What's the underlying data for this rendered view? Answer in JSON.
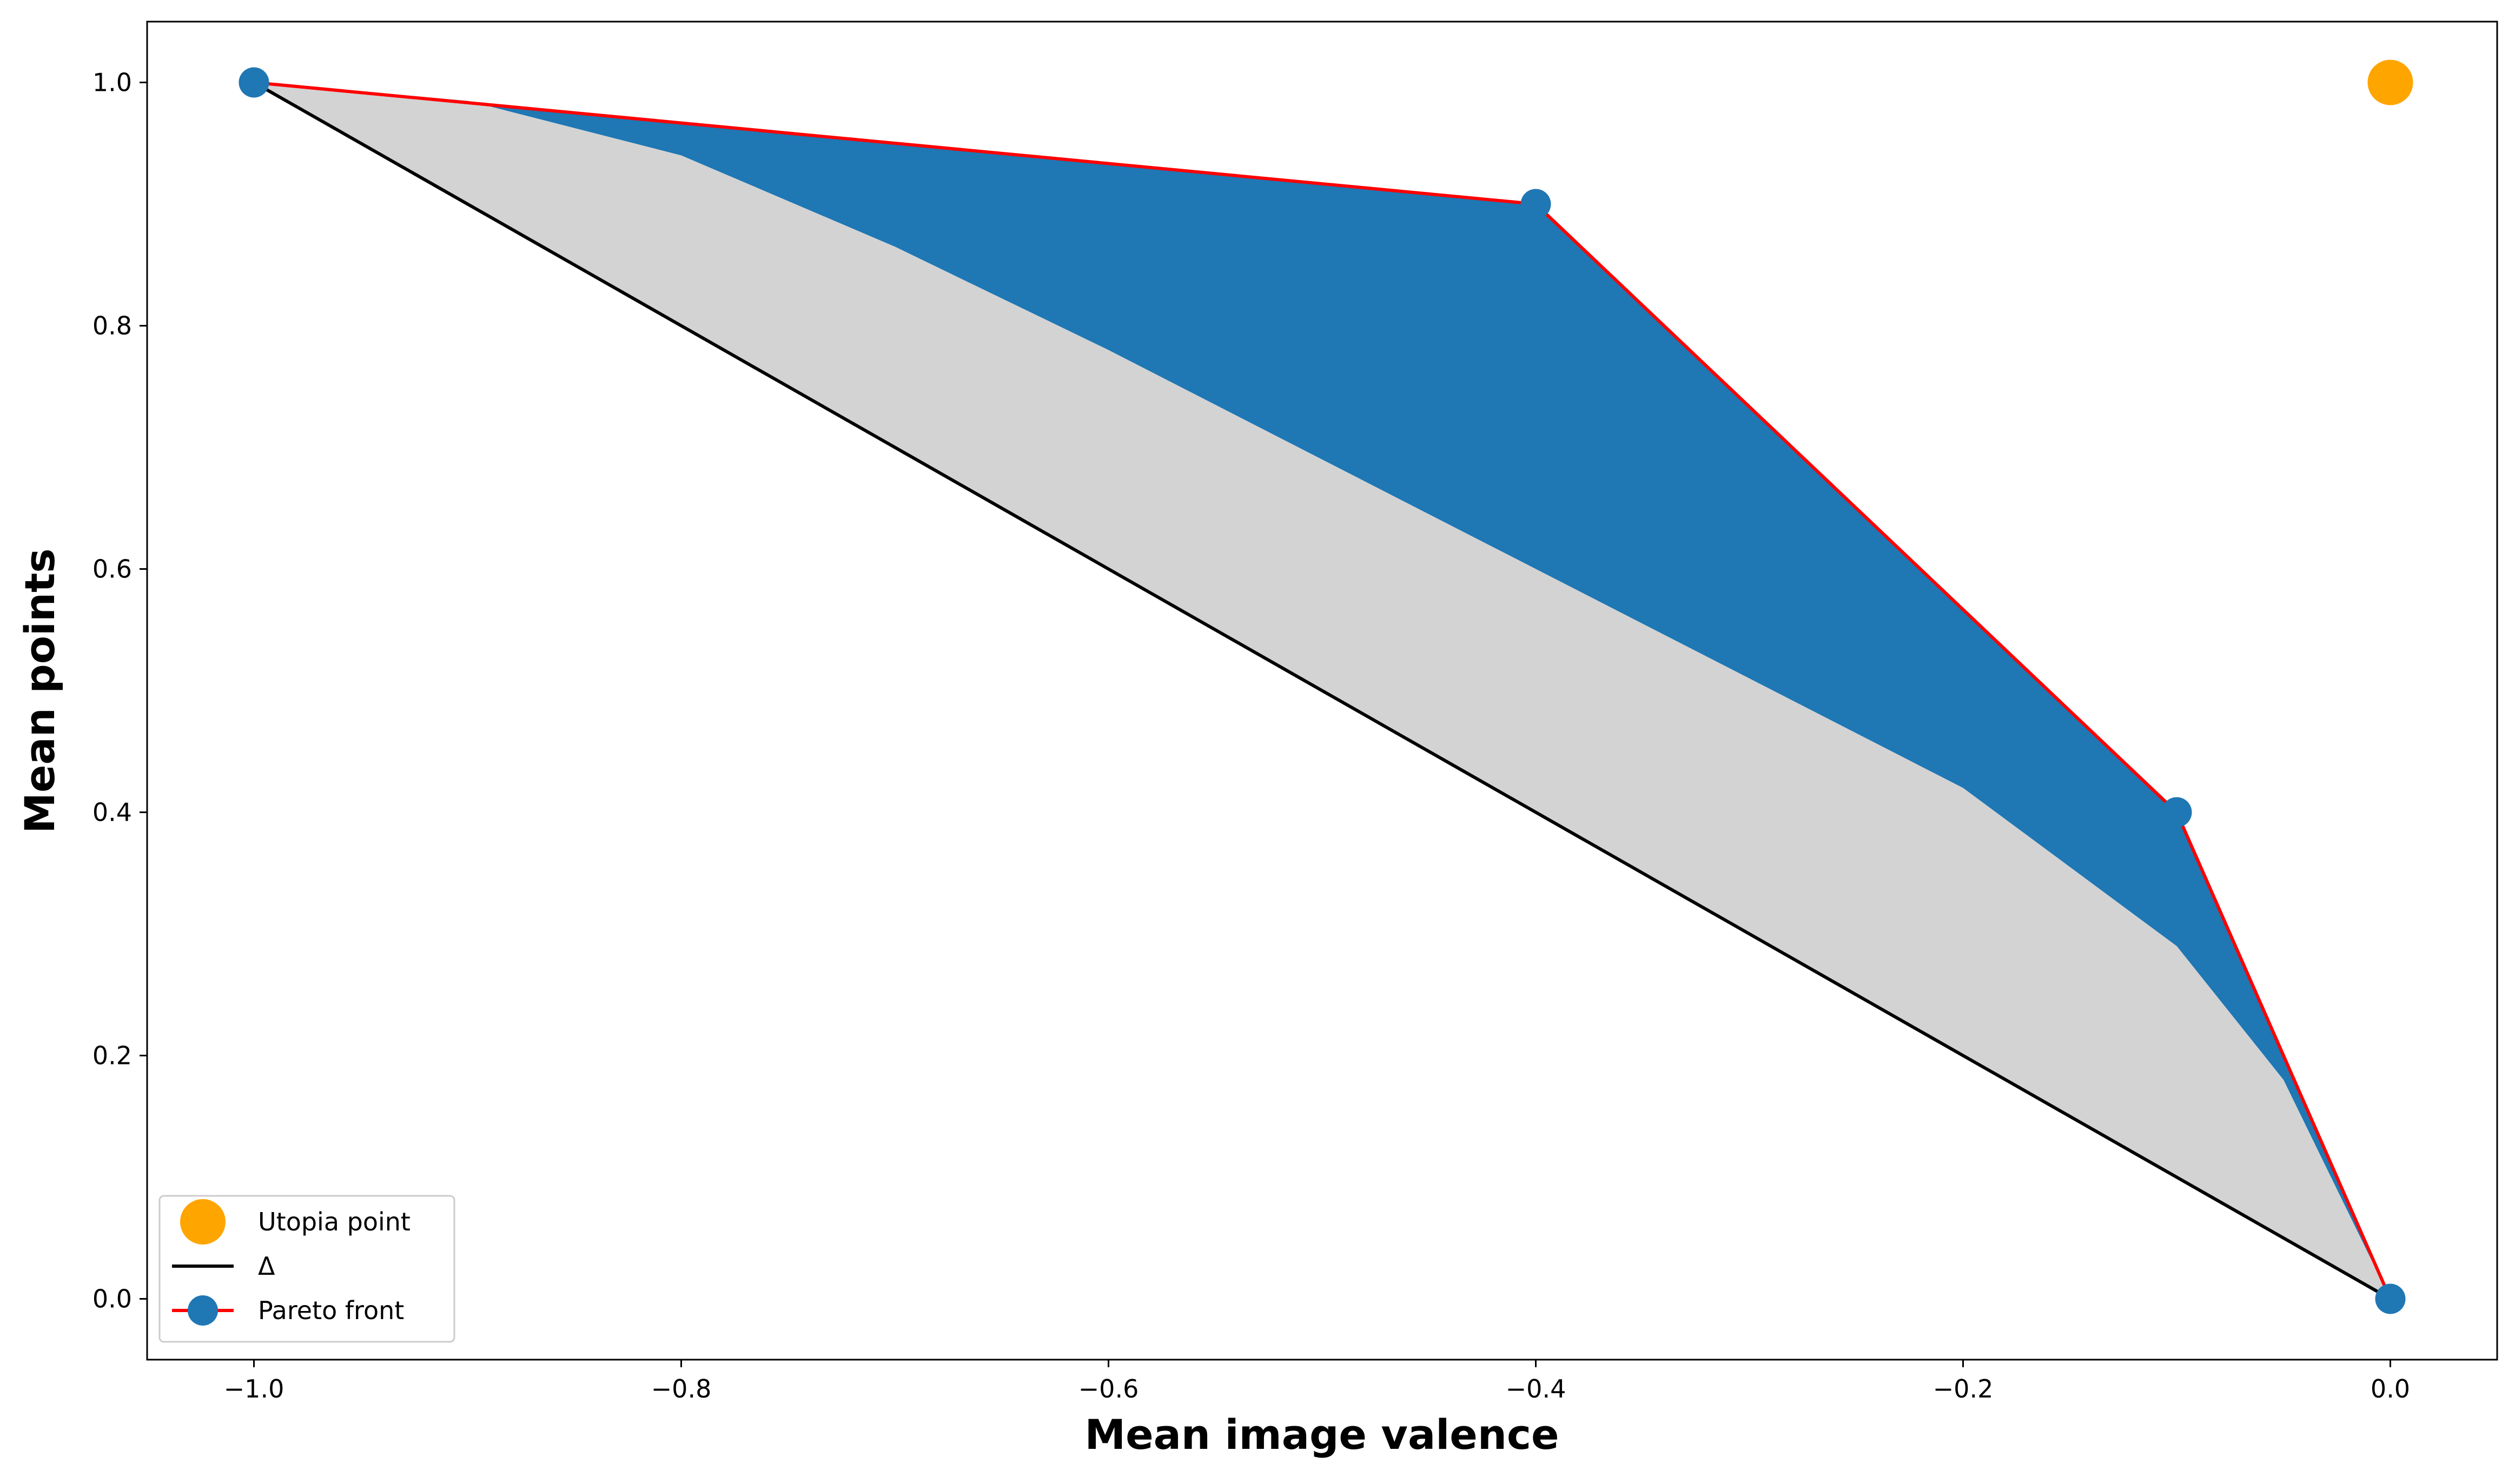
{
  "chart_data": {
    "type": "line",
    "xlabel": "Mean image valence",
    "ylabel": "Mean points",
    "xlim": [
      -1.05,
      0.05
    ],
    "ylim": [
      -0.05,
      1.05
    ],
    "x_ticks": [
      -1.0,
      -0.8,
      -0.6,
      -0.4,
      -0.2,
      0.0
    ],
    "x_tick_labels": [
      "−1.0",
      "−0.8",
      "−0.6",
      "−0.4",
      "−0.2",
      "0.0"
    ],
    "y_ticks": [
      0.0,
      0.2,
      0.4,
      0.6,
      0.8,
      1.0
    ],
    "y_tick_labels": [
      "0.0",
      "0.2",
      "0.4",
      "0.6",
      "0.8",
      "1.0"
    ],
    "grid": false,
    "legend": {
      "placement": "lower-left",
      "entries": [
        "Utopia point",
        "Δ",
        "Pareto front"
      ]
    },
    "series": [
      {
        "name": "Utopia point",
        "kind": "point",
        "color": "#ffa500",
        "points": [
          [
            0.0,
            1.0
          ]
        ]
      },
      {
        "name": "Δ",
        "kind": "line",
        "color": "#000000",
        "points": [
          [
            -1.0,
            1.0
          ],
          [
            0.0,
            0.0
          ]
        ]
      },
      {
        "name": "Pareto front",
        "kind": "line+markers",
        "line_color": "#ff0000",
        "marker_color": "#1f77b4",
        "points": [
          [
            -1.0,
            1.0
          ],
          [
            -0.4,
            0.9
          ],
          [
            -0.1,
            0.4
          ],
          [
            0.0,
            0.0
          ]
        ]
      }
    ],
    "regions": [
      {
        "description": "area between diagonal and curved boundary",
        "color": "#d3d3d3",
        "boundary": [
          [
            -1.0,
            1.0
          ],
          [
            -0.9,
            0.985
          ],
          [
            -0.8,
            0.94
          ],
          [
            -0.7,
            0.865
          ],
          [
            -0.6,
            0.78
          ],
          [
            -0.5,
            0.69
          ],
          [
            -0.4,
            0.6
          ],
          [
            -0.3,
            0.51
          ],
          [
            -0.2,
            0.42
          ],
          [
            -0.1,
            0.29
          ],
          [
            -0.05,
            0.18
          ],
          [
            0.0,
            0.0
          ]
        ]
      },
      {
        "description": "area between curved boundary and Pareto front",
        "color": "#1f77b4"
      }
    ]
  }
}
